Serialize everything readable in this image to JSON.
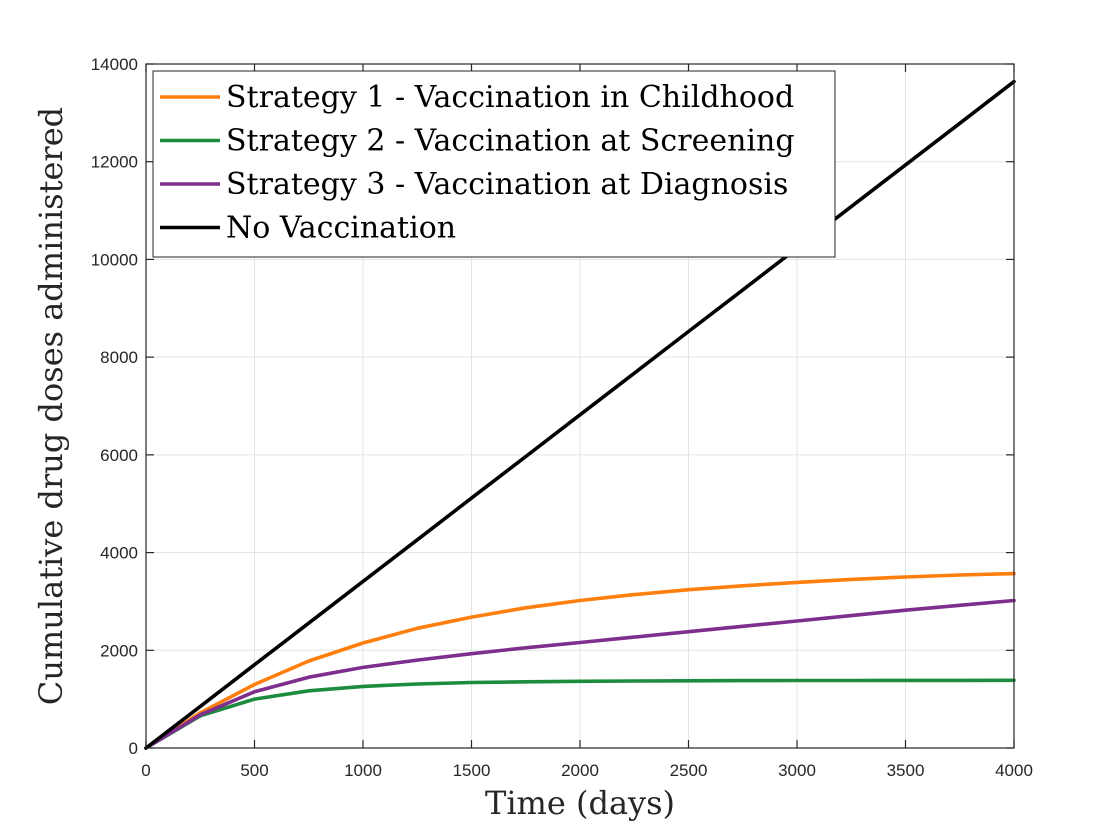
{
  "chart_data": {
    "type": "line",
    "title": "",
    "xlabel": "Time (days)",
    "ylabel": "Cumulative drug doses administered",
    "xlim": [
      0,
      4000
    ],
    "ylim": [
      0,
      14000
    ],
    "xticks": [
      0,
      500,
      1000,
      1500,
      2000,
      2500,
      3000,
      3500,
      4000
    ],
    "xtick_labels": [
      "0",
      "500",
      "1000",
      "1500",
      "2000",
      "2500",
      "3000",
      "3500",
      "4000"
    ],
    "yticks": [
      0,
      2000,
      4000,
      6000,
      8000,
      10000,
      12000,
      14000
    ],
    "ytick_labels": [
      "0",
      "2000",
      "4000",
      "6000",
      "8000",
      "10000",
      "12000",
      "14000"
    ],
    "grid": true,
    "legend_position": "top-left",
    "x": [
      0,
      250,
      500,
      750,
      1000,
      1250,
      1500,
      1750,
      2000,
      2250,
      2500,
      2750,
      3000,
      3250,
      3500,
      3750,
      4000
    ],
    "series": [
      {
        "name": "Strategy 1 - Vaccination in Childhood",
        "color": "#ff7f0e",
        "values": [
          0,
          720,
          1300,
          1780,
          2150,
          2450,
          2680,
          2870,
          3020,
          3140,
          3240,
          3320,
          3390,
          3450,
          3500,
          3540,
          3570
        ]
      },
      {
        "name": "Strategy 2 - Vaccination at Screening",
        "color": "#1e8c3f",
        "values": [
          0,
          660,
          1000,
          1170,
          1260,
          1310,
          1340,
          1355,
          1365,
          1372,
          1376,
          1379,
          1381,
          1382,
          1383,
          1384,
          1385
        ]
      },
      {
        "name": "Strategy 3 - Vaccination at Diagnosis",
        "color": "#7e2f8e",
        "values": [
          0,
          680,
          1150,
          1450,
          1650,
          1800,
          1930,
          2050,
          2160,
          2270,
          2380,
          2490,
          2600,
          2710,
          2820,
          2920,
          3020
        ]
      },
      {
        "name": "No Vaccination",
        "color": "#000000",
        "values": [
          0,
          852,
          1705,
          2557,
          3410,
          4262,
          5115,
          5967,
          6820,
          7672,
          8525,
          9377,
          10230,
          11082,
          11935,
          12787,
          13640
        ]
      }
    ]
  }
}
